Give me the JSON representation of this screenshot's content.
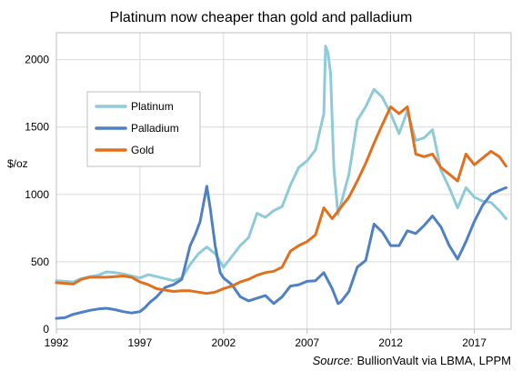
{
  "chart_data": {
    "type": "line",
    "title": "Platinum now cheaper than gold and palladium",
    "ylabel": "$/oz",
    "xlabel": "",
    "xlim": [
      1992,
      2019.2
    ],
    "ylim": [
      0,
      2200
    ],
    "x_ticks": [
      1992,
      1997,
      2002,
      2007,
      2012,
      2017
    ],
    "y_ticks": [
      0,
      500,
      1000,
      1500,
      2000
    ],
    "grid": true,
    "legend_position": "upper-left",
    "source_label": "Source:",
    "source_text": "BullionVault via LBMA, LPPM",
    "colors": {
      "Platinum": "#8fcad8",
      "Palladium": "#4f80c4",
      "Gold": "#e0701e"
    },
    "series": [
      {
        "name": "Platinum",
        "x": [
          1992,
          1992.5,
          1993,
          1993.5,
          1994,
          1994.5,
          1995,
          1995.5,
          1996,
          1996.5,
          1997,
          1997.5,
          1998,
          1998.5,
          1999,
          1999.5,
          2000,
          2000.5,
          2001,
          2001.5,
          2002,
          2002.5,
          2003,
          2003.5,
          2004,
          2004.5,
          2005,
          2005.5,
          2006,
          2006.5,
          2007,
          2007.5,
          2008,
          2008.1,
          2008.25,
          2008.4,
          2008.6,
          2008.85,
          2009,
          2009.5,
          2010,
          2010.5,
          2011,
          2011.5,
          2012,
          2012.5,
          2013,
          2013.5,
          2014,
          2014.5,
          2015,
          2015.5,
          2016,
          2016.5,
          2017,
          2017.5,
          2018,
          2018.5,
          2018.9
        ],
        "values": [
          360,
          355,
          350,
          375,
          390,
          400,
          425,
          420,
          410,
          395,
          380,
          405,
          390,
          375,
          360,
          380,
          480,
          560,
          610,
          560,
          460,
          540,
          620,
          680,
          860,
          830,
          880,
          910,
          1070,
          1200,
          1250,
          1330,
          1600,
          2100,
          2050,
          1900,
          1200,
          850,
          920,
          1150,
          1550,
          1650,
          1780,
          1720,
          1600,
          1450,
          1620,
          1400,
          1420,
          1480,
          1180,
          1050,
          900,
          1050,
          980,
          950,
          940,
          880,
          820
        ]
      },
      {
        "name": "Palladium",
        "x": [
          1992,
          1992.5,
          1993,
          1993.5,
          1994,
          1994.5,
          1995,
          1995.5,
          1996,
          1996.5,
          1997,
          1997.3,
          1997.6,
          1998,
          1998.5,
          1999,
          1999.5,
          2000,
          2000.3,
          2000.6,
          2001,
          2001.2,
          2001.5,
          2001.8,
          2002,
          2002.5,
          2003,
          2003.5,
          2004,
          2004.5,
          2005,
          2005.5,
          2006,
          2006.5,
          2007,
          2007.5,
          2008,
          2008.5,
          2008.85,
          2009,
          2009.5,
          2010,
          2010.5,
          2011,
          2011.5,
          2012,
          2012.5,
          2013,
          2013.5,
          2014,
          2014.5,
          2015,
          2015.5,
          2016,
          2016.5,
          2017,
          2017.5,
          2018,
          2018.5,
          2018.9
        ],
        "values": [
          80,
          85,
          110,
          125,
          140,
          150,
          155,
          145,
          130,
          120,
          130,
          160,
          200,
          240,
          310,
          330,
          370,
          620,
          700,
          800,
          1060,
          900,
          620,
          420,
          380,
          330,
          240,
          210,
          230,
          250,
          190,
          240,
          320,
          330,
          355,
          360,
          420,
          300,
          190,
          200,
          280,
          460,
          510,
          780,
          720,
          620,
          620,
          730,
          710,
          770,
          840,
          760,
          620,
          520,
          650,
          800,
          920,
          1000,
          1030,
          1050
        ]
      },
      {
        "name": "Gold",
        "x": [
          1992,
          1992.5,
          1993,
          1993.5,
          1994,
          1994.5,
          1995,
          1995.5,
          1996,
          1996.5,
          1997,
          1997.5,
          1998,
          1998.5,
          1999,
          1999.5,
          2000,
          2000.5,
          2001,
          2001.5,
          2002,
          2002.5,
          2003,
          2003.5,
          2004,
          2004.5,
          2005,
          2005.5,
          2006,
          2006.5,
          2007,
          2007.5,
          2008,
          2008.5,
          2009,
          2009.5,
          2010,
          2010.5,
          2011,
          2011.5,
          2012,
          2012.5,
          2013,
          2013.5,
          2014,
          2014.5,
          2015,
          2015.5,
          2016,
          2016.5,
          2017,
          2017.5,
          2018,
          2018.5,
          2018.9
        ],
        "values": [
          345,
          340,
          335,
          370,
          385,
          385,
          385,
          390,
          395,
          385,
          350,
          330,
          300,
          290,
          280,
          285,
          285,
          275,
          265,
          275,
          300,
          320,
          350,
          370,
          400,
          420,
          430,
          460,
          580,
          620,
          650,
          700,
          900,
          820,
          900,
          980,
          1100,
          1230,
          1380,
          1520,
          1650,
          1600,
          1650,
          1300,
          1280,
          1300,
          1200,
          1150,
          1100,
          1300,
          1220,
          1270,
          1320,
          1280,
          1210
        ]
      }
    ]
  }
}
